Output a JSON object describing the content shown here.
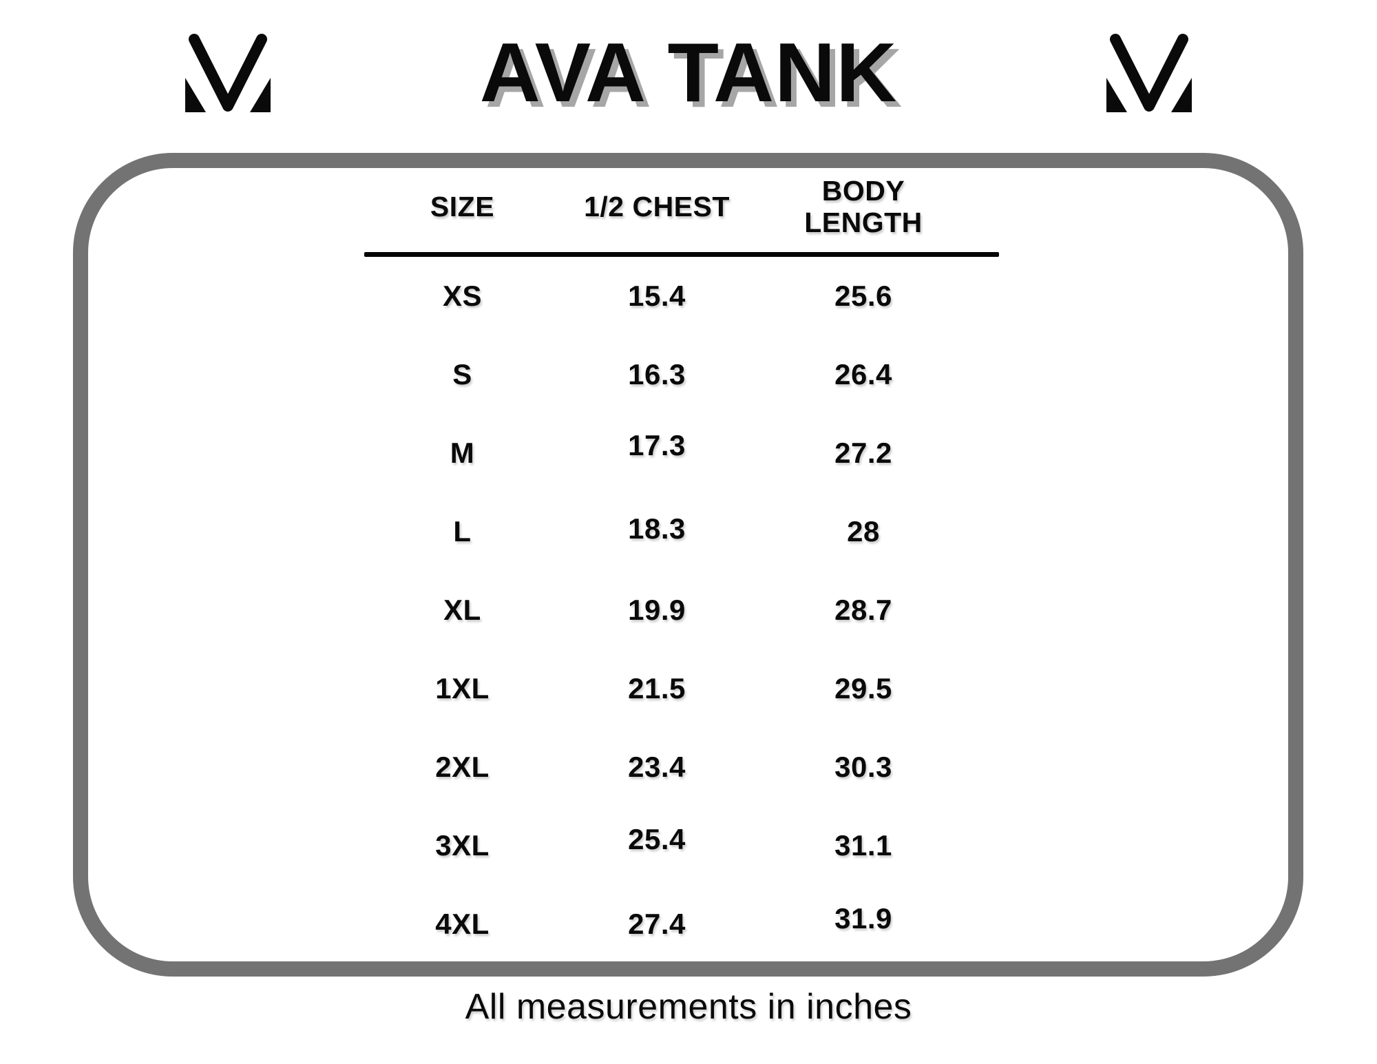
{
  "title": "AVA TANK",
  "logos": {
    "left": "brand-m-logo",
    "right": "brand-m-logo"
  },
  "size_chart": {
    "columns": [
      "SIZE",
      "1/2 CHEST",
      "BODY LENGTH"
    ],
    "rows": [
      [
        "XS",
        "15.4",
        "25.6"
      ],
      [
        "S",
        "16.3",
        "26.4"
      ],
      [
        "M",
        "17.3",
        "27.2"
      ],
      [
        "L",
        "18.3",
        "28"
      ],
      [
        "XL",
        "19.9",
        "28.7"
      ],
      [
        "1XL",
        "21.5",
        "29.5"
      ],
      [
        "2XL",
        "23.4",
        "30.3"
      ],
      [
        "3XL",
        "25.4",
        "31.1"
      ],
      [
        "4XL",
        "27.4",
        "31.9"
      ]
    ]
  },
  "footnote": "All measurements in inches",
  "colors": {
    "ink": "#0a0a0a",
    "frame_gray": "#737373",
    "title_shadow": "#a6a6a6"
  }
}
